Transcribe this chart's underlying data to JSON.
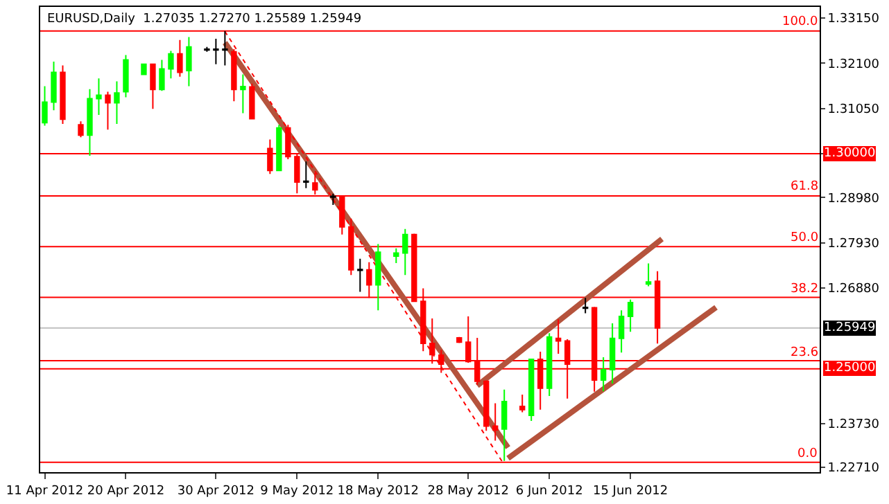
{
  "chart_data": {
    "type": "candlestick",
    "title": "EURUSD,Daily  1.27035 1.27270 1.25589 1.25949",
    "x": [
      "2012-04-11",
      "2012-04-12",
      "2012-04-13",
      "2012-04-15",
      "2012-04-16",
      "2012-04-17",
      "2012-04-18",
      "2012-04-19",
      "2012-04-20",
      "2012-04-22",
      "2012-04-23",
      "2012-04-24",
      "2012-04-25",
      "2012-04-26",
      "2012-04-27",
      "2012-04-29",
      "2012-04-30",
      "2012-05-01",
      "2012-05-02",
      "2012-05-03",
      "2012-05-04",
      "2012-05-06",
      "2012-05-07",
      "2012-05-08",
      "2012-05-09",
      "2012-05-10",
      "2012-05-11",
      "2012-05-13",
      "2012-05-14",
      "2012-05-15",
      "2012-05-16",
      "2012-05-17",
      "2012-05-18",
      "2012-05-20",
      "2012-05-21",
      "2012-05-22",
      "2012-05-23",
      "2012-05-24",
      "2012-05-25",
      "2012-05-27",
      "2012-05-28",
      "2012-05-29",
      "2012-05-30",
      "2012-05-31",
      "2012-06-01",
      "2012-06-03",
      "2012-06-04",
      "2012-06-05",
      "2012-06-06",
      "2012-06-07",
      "2012-06-08",
      "2012-06-10",
      "2012-06-11",
      "2012-06-12",
      "2012-06-13",
      "2012-06-14",
      "2012-06-15",
      "2012-06-17",
      "2012-06-18"
    ],
    "ohlc": [
      [
        1.3072,
        1.3157,
        1.3065,
        1.312
      ],
      [
        1.312,
        1.3214,
        1.3101,
        1.3189
      ],
      [
        1.3189,
        1.3205,
        1.3069,
        1.308
      ],
      [
        1.3067,
        1.3075,
        1.3038,
        1.3043
      ],
      [
        1.3043,
        1.315,
        1.2995,
        1.3128
      ],
      [
        1.3128,
        1.3175,
        1.309,
        1.3136
      ],
      [
        1.3136,
        1.3144,
        1.3056,
        1.3118
      ],
      [
        1.3118,
        1.3168,
        1.3069,
        1.3141
      ],
      [
        1.3144,
        1.3229,
        1.3131,
        1.3218
      ],
      [
        1.3184,
        1.3208,
        1.3184,
        1.3208
      ],
      [
        1.3208,
        1.3208,
        1.3104,
        1.3149
      ],
      [
        1.3149,
        1.3218,
        1.3146,
        1.3197
      ],
      [
        1.3197,
        1.3239,
        1.3175,
        1.3232
      ],
      [
        1.3232,
        1.3264,
        1.3179,
        1.3189
      ],
      [
        1.3193,
        1.3271,
        1.3157,
        1.3248
      ],
      [
        1.3243,
        1.3248,
        1.3237,
        1.3241
      ],
      [
        1.3243,
        1.3267,
        1.3208,
        1.3241
      ],
      [
        1.3243,
        1.3285,
        1.3205,
        1.3241
      ],
      [
        1.3237,
        1.3243,
        1.3122,
        1.3149
      ],
      [
        1.3149,
        1.3184,
        1.3094,
        1.3156
      ],
      [
        1.3155,
        1.3163,
        1.3081,
        1.3081
      ],
      [
        1.3012,
        1.3033,
        1.2953,
        1.2961
      ],
      [
        1.2961,
        1.3067,
        1.2961,
        1.306
      ],
      [
        1.306,
        1.3067,
        1.2987,
        1.2993
      ],
      [
        1.2993,
        1.3001,
        1.2908,
        1.2934
      ],
      [
        1.2936,
        1.2982,
        1.292,
        1.2934
      ],
      [
        1.2932,
        1.2955,
        1.2905,
        1.2916
      ],
      [
        1.2901,
        1.2907,
        1.2881,
        1.2899
      ],
      [
        1.2899,
        1.2902,
        1.2812,
        1.283
      ],
      [
        1.283,
        1.2849,
        1.2718,
        1.273
      ],
      [
        1.2731,
        1.2756,
        1.2679,
        1.2729
      ],
      [
        1.273,
        1.2748,
        1.2665,
        1.2695
      ],
      [
        1.2695,
        1.279,
        1.2636,
        1.2771
      ],
      [
        1.2762,
        1.278,
        1.2746,
        1.2769
      ],
      [
        1.2769,
        1.2825,
        1.2718,
        1.2812
      ],
      [
        1.2812,
        1.2814,
        1.2657,
        1.2657
      ],
      [
        1.2657,
        1.2687,
        1.2541,
        1.2559
      ],
      [
        1.2559,
        1.2617,
        1.2512,
        1.2533
      ],
      [
        1.2532,
        1.2544,
        1.2491,
        1.2511
      ],
      [
        1.2572,
        1.2574,
        1.256,
        1.2562
      ],
      [
        1.2562,
        1.2622,
        1.2514,
        1.2517
      ],
      [
        1.2517,
        1.2572,
        1.2463,
        1.2471
      ],
      [
        1.2471,
        1.2473,
        1.2356,
        1.2367
      ],
      [
        1.2367,
        1.242,
        1.2333,
        1.2358
      ],
      [
        1.236,
        1.2452,
        1.2286,
        1.2424
      ],
      [
        1.2413,
        1.244,
        1.2399,
        1.2405
      ],
      [
        1.2392,
        1.2522,
        1.2379,
        1.2522
      ],
      [
        1.2522,
        1.254,
        1.2405,
        1.2455
      ],
      [
        1.2455,
        1.2583,
        1.2437,
        1.2574
      ],
      [
        1.2571,
        1.2615,
        1.2535,
        1.2565
      ],
      [
        1.2565,
        1.2569,
        1.2431,
        1.2511
      ],
      [
        1.2643,
        1.2665,
        1.2629,
        1.2641
      ],
      [
        1.2642,
        1.2644,
        1.2447,
        1.2474
      ],
      [
        1.2474,
        1.2527,
        1.2448,
        1.2498
      ],
      [
        1.2498,
        1.2606,
        1.2466,
        1.2571
      ],
      [
        1.2571,
        1.2636,
        1.2538,
        1.2622
      ],
      [
        1.2622,
        1.2661,
        1.2586,
        1.2654
      ],
      [
        1.2697,
        1.2745,
        1.2692,
        1.2702
      ],
      [
        1.27035,
        1.2727,
        1.25589,
        1.25949
      ]
    ],
    "colors": [
      "#00ff00",
      "#00ff00",
      "#ff0000",
      "#ff0000",
      "#00ff00",
      "#00ff00",
      "#ff0000",
      "#00ff00",
      "#00ff00",
      "#00ff00",
      "#ff0000",
      "#00ff00",
      "#00ff00",
      "#ff0000",
      "#00ff00",
      "#000000",
      "#000000",
      "#000000",
      "#ff0000",
      "#00ff00",
      "#ff0000",
      "#ff0000",
      "#00ff00",
      "#ff0000",
      "#ff0000",
      "#000000",
      "#ff0000",
      "#000000",
      "#ff0000",
      "#ff0000",
      "#000000",
      "#ff0000",
      "#00ff00",
      "#00ff00",
      "#00ff00",
      "#ff0000",
      "#ff0000",
      "#ff0000",
      "#ff0000",
      "#ff0000",
      "#ff0000",
      "#ff0000",
      "#ff0000",
      "#ff0000",
      "#00ff00",
      "#ff0000",
      "#00ff00",
      "#ff0000",
      "#00ff00",
      "#ff0000",
      "#ff0000",
      "#000000",
      "#ff0000",
      "#00ff00",
      "#00ff00",
      "#00ff00",
      "#00ff00",
      "#00ff00",
      "#ff0000"
    ],
    "series": [
      {
        "type": "line",
        "x": [
          "2012-05-01",
          "2012-06-01T10:00"
        ],
        "values": [
          1.3258,
          1.2317
        ],
        "color": "#b5533c"
      },
      {
        "type": "line",
        "x": [
          "2012-05-29",
          "2012-06-18T12:00"
        ],
        "values": [
          1.2461,
          1.2802
        ],
        "color": "#b5533c"
      },
      {
        "type": "line",
        "x": [
          "2012-06-01T10:00",
          "2012-06-24T12:00"
        ],
        "values": [
          1.2292,
          1.2643
        ],
        "color": "#b5533c"
      },
      {
        "type": "line",
        "x": [
          "2012-05-01",
          "2012-05-31T18:00"
        ],
        "values": [
          1.3284,
          1.2285
        ],
        "color": "#ff0000",
        "line_style": "dotted"
      }
    ],
    "annotations": [
      {
        "text": "100.0",
        "x": "2012-07-06",
        "y": 1.3285
      },
      {
        "text": "61.8",
        "x": "2012-07-06",
        "y": 1.2902
      },
      {
        "text": "50.0",
        "x": "2012-07-06",
        "y": 1.2784
      },
      {
        "text": "38.2",
        "x": "2012-07-06",
        "y": 1.2666
      },
      {
        "text": "23.6",
        "x": "2012-07-06",
        "y": 1.2519
      },
      {
        "text": "0.0",
        "x": "2012-07-06",
        "y": 1.2283
      }
    ],
    "ref_lines": [
      {
        "axis": "y",
        "value": 1.3285,
        "color": "#ff0000"
      },
      {
        "axis": "y",
        "value": 1.2902,
        "color": "#ff0000"
      },
      {
        "axis": "y",
        "value": 1.2784,
        "color": "#ff0000"
      },
      {
        "axis": "y",
        "value": 1.2666,
        "color": "#ff0000"
      },
      {
        "axis": "y",
        "value": 1.2519,
        "color": "#ff0000"
      },
      {
        "axis": "y",
        "value": 1.2283,
        "color": "#ff0000"
      },
      {
        "axis": "y",
        "value": 1.3,
        "label": "1.30000",
        "color": "#ff0000"
      },
      {
        "axis": "y",
        "value": 1.25,
        "label": "1.25000",
        "color": "#ff0000"
      },
      {
        "axis": "y",
        "value": 1.25949,
        "label": "1.25949",
        "color": "#c0c0c0"
      }
    ],
    "xlim": [
      "2012-04-10T12:00",
      "2012-07-06"
    ],
    "xticks": [
      {
        "value": "2012-04-11",
        "label": "11 Apr 2012"
      },
      {
        "value": "2012-04-20",
        "label": "20 Apr 2012"
      },
      {
        "value": "2012-04-30",
        "label": "30 Apr 2012"
      },
      {
        "value": "2012-05-09",
        "label": "9 May 2012"
      },
      {
        "value": "2012-05-18",
        "label": "18 May 2012"
      },
      {
        "value": "2012-05-28",
        "label": "28 May 2012"
      },
      {
        "value": "2012-06-06",
        "label": "6 Jun 2012"
      },
      {
        "value": "2012-06-15",
        "label": "15 Jun 2012"
      }
    ],
    "ylim": [
      1.226,
      1.3341
    ],
    "yticks": [
      {
        "value": 1.3315,
        "label": "1.33150"
      },
      {
        "value": 1.321,
        "label": "1.32100"
      },
      {
        "value": 1.3105,
        "label": "1.31050"
      },
      {
        "value": 1.3,
        "label": null
      },
      {
        "value": 1.2898,
        "label": "1.28980"
      },
      {
        "value": 1.2793,
        "label": "1.27930"
      },
      {
        "value": 1.2688,
        "label": "1.26880"
      },
      {
        "value": 1.2373,
        "label": "1.23730"
      },
      {
        "value": 1.2271,
        "label": "1.22710"
      }
    ],
    "grid": false
  }
}
